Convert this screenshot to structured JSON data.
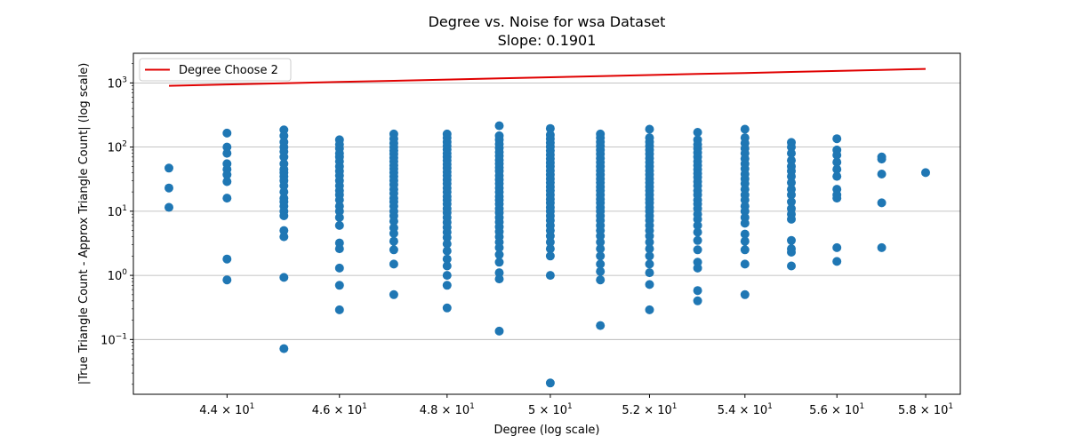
{
  "chart_data": {
    "type": "scatter",
    "title": "Degree vs. Noise for wsa Dataset",
    "subtitle": "Slope: 0.1901",
    "xlabel": "Degree (log scale)",
    "ylabel": "|True Triangle Count - Approx Triangle Count| (log scale)",
    "xscale": "log",
    "yscale": "log",
    "xlim": [
      42.4,
      58.8
    ],
    "ylim": [
      0.014,
      2900
    ],
    "grid": "y-major",
    "legend_position": "top-left",
    "x_ticks": [
      {
        "base": "4.4",
        "value": 44
      },
      {
        "base": "4.6",
        "value": 46
      },
      {
        "base": "4.8",
        "value": 48
      },
      {
        "base": "5",
        "value": 50
      },
      {
        "base": "5.2",
        "value": 52
      },
      {
        "base": "5.4",
        "value": 54
      },
      {
        "base": "5.6",
        "value": 56
      },
      {
        "base": "5.8",
        "value": 58
      }
    ],
    "x_tick_suffix": "× 10",
    "x_tick_exponent": "1",
    "y_ticks": [
      {
        "base": "10",
        "exp": "−1",
        "value": 0.1
      },
      {
        "base": "10",
        "exp": "0",
        "value": 1
      },
      {
        "base": "10",
        "exp": "1",
        "value": 10
      },
      {
        "base": "10",
        "exp": "2",
        "value": 100
      },
      {
        "base": "10",
        "exp": "3",
        "value": 1000
      }
    ],
    "line": {
      "name": "Degree Choose 2",
      "color": "#e00000",
      "x": [
        43,
        44,
        45,
        46,
        47,
        48,
        49,
        50,
        51,
        52,
        53,
        54,
        55,
        56,
        57,
        58
      ],
      "y": [
        903,
        946,
        990,
        1035,
        1081,
        1128,
        1176,
        1225,
        1275,
        1326,
        1378,
        1431,
        1485,
        1540,
        1596,
        1653
      ]
    },
    "scatter_color": "#1f77b4",
    "points": [
      {
        "x": 43,
        "y": [
          47,
          23,
          11.5
        ]
      },
      {
        "x": 44,
        "y": [
          165,
          100,
          80,
          55,
          45,
          37,
          29,
          16,
          1.8,
          0.85
        ]
      },
      {
        "x": 45,
        "y": [
          185,
          150,
          120,
          100,
          85,
          70,
          55,
          45,
          40,
          35,
          30,
          25,
          20,
          16,
          14,
          12,
          10,
          8.5,
          5,
          4,
          0.93,
          0.072
        ]
      },
      {
        "x": 46,
        "y": [
          130,
          110,
          95,
          80,
          70,
          60,
          50,
          42,
          36,
          30,
          25,
          21,
          18,
          15,
          12,
          10,
          8,
          6,
          3.2,
          2.6,
          1.3,
          0.7,
          0.29
        ]
      },
      {
        "x": 47,
        "y": [
          160,
          135,
          115,
          100,
          88,
          78,
          68,
          60,
          52,
          46,
          40,
          35,
          30,
          26,
          22,
          19,
          16,
          14,
          12,
          10,
          8.5,
          7,
          5.5,
          4.5,
          3.4,
          2.5,
          1.5,
          0.5
        ]
      },
      {
        "x": 48,
        "y": [
          160,
          140,
          120,
          105,
          92,
          80,
          70,
          62,
          54,
          47,
          41,
          36,
          31,
          27,
          23,
          20,
          17,
          15,
          13,
          11,
          9.5,
          8,
          6.7,
          5.6,
          4.7,
          3.9,
          3.1,
          2.4,
          1.8,
          1.4,
          1.0,
          0.7,
          0.31
        ]
      },
      {
        "x": 49,
        "y": [
          215,
          150,
          130,
          112,
          97,
          84,
          73,
          63,
          55,
          48,
          42,
          36,
          31,
          27,
          23,
          20,
          17,
          15,
          13,
          11,
          9.5,
          8,
          6.8,
          5.7,
          4.8,
          4,
          3.3,
          2.7,
          2.1,
          1.6,
          1.1,
          0.88,
          0.135
        ]
      },
      {
        "x": 50,
        "y": [
          195,
          155,
          135,
          117,
          101,
          88,
          76,
          66,
          57,
          50,
          43,
          37,
          32,
          28,
          24,
          21,
          18,
          15.5,
          13.5,
          11.5,
          10,
          8.5,
          7.2,
          6,
          5,
          4.1,
          3.3,
          2.6,
          2.0,
          1.0,
          0.021
        ]
      },
      {
        "x": 51,
        "y": [
          160,
          140,
          120,
          104,
          90,
          78,
          67,
          58,
          50,
          43,
          37,
          32,
          28,
          24,
          21,
          18,
          15.5,
          13.5,
          11.5,
          10,
          8.5,
          7.2,
          6,
          5,
          4.1,
          3.3,
          2.6,
          2.0,
          1.5,
          1.15,
          0.85,
          0.165
        ]
      },
      {
        "x": 52,
        "y": [
          190,
          140,
          120,
          104,
          90,
          78,
          67,
          58,
          50,
          43,
          37,
          32,
          28,
          24,
          21,
          18,
          15.5,
          13.5,
          11.5,
          10,
          8.5,
          7.2,
          6,
          5,
          4.1,
          3.3,
          2.6,
          2.0,
          1.5,
          1.1,
          0.72,
          0.29
        ]
      },
      {
        "x": 53,
        "y": [
          170,
          130,
          110,
          95,
          82,
          70,
          60,
          52,
          45,
          39,
          34,
          29,
          25,
          21,
          18,
          15,
          13,
          11,
          9,
          7.5,
          6,
          4.7,
          3.5,
          2.5,
          1.6,
          1.3,
          0.58,
          0.4
        ]
      },
      {
        "x": 54,
        "y": [
          190,
          140,
          115,
          95,
          80,
          66,
          55,
          46,
          38,
          32,
          27,
          22,
          18,
          15,
          12,
          10,
          8,
          6.5,
          4.4,
          3.4,
          2.5,
          1.5,
          0.5
        ]
      },
      {
        "x": 55,
        "y": [
          118,
          100,
          80,
          62,
          50,
          42,
          35,
          28,
          22,
          18,
          14,
          11,
          9,
          7.5,
          3.5,
          2.6,
          2.3,
          1.4
        ]
      },
      {
        "x": 56,
        "y": [
          135,
          90,
          75,
          58,
          45,
          35,
          22,
          18,
          16,
          2.7,
          1.65
        ]
      },
      {
        "x": 57,
        "y": [
          70,
          65,
          38,
          13.5,
          2.7
        ]
      },
      {
        "x": 58,
        "y": [
          40
        ]
      }
    ]
  }
}
